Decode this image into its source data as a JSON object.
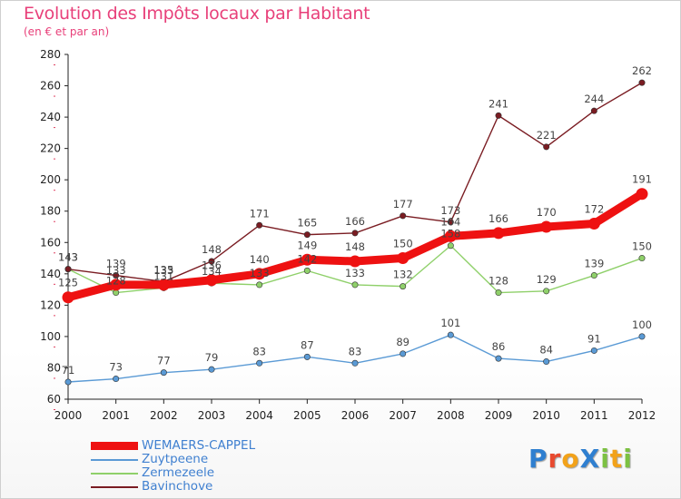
{
  "header": {
    "title": "Evolution des Impôts locaux par Habitant",
    "subtitle": "(en € et par an)"
  },
  "logo": {
    "text": "ProXiti",
    "letters": [
      {
        "ch": "P",
        "color": "#2f7fd0"
      },
      {
        "ch": "r",
        "color": "#e84a2f"
      },
      {
        "ch": "o",
        "color": "#f2a21a"
      },
      {
        "ch": "X",
        "color": "#2f7fd0"
      },
      {
        "ch": "i",
        "color": "#7cc142"
      },
      {
        "ch": "t",
        "color": "#f2a21a"
      },
      {
        "ch": "i",
        "color": "#7cc142"
      }
    ]
  },
  "chart_data": {
    "type": "line",
    "title": "Evolution des Impôts locaux par Habitant",
    "subtitle": "(en € et par an)",
    "x": [
      "2000",
      "2001",
      "2002",
      "2003",
      "2004",
      "2005",
      "2006",
      "2007",
      "2008",
      "2009",
      "2010",
      "2011",
      "2012"
    ],
    "ylim": [
      60,
      280
    ],
    "yticks": [
      60,
      80,
      100,
      120,
      140,
      160,
      180,
      200,
      220,
      240,
      260,
      280
    ],
    "grid": false,
    "legend_position": "bottom-left",
    "series": [
      {
        "name": "WEMAERS-CAPPEL",
        "color": "#ee1111",
        "values": [
          125,
          133,
          133,
          136,
          140,
          149,
          148,
          150,
          164,
          166,
          170,
          172,
          191
        ]
      },
      {
        "name": "Zuytpeene",
        "color": "#5a9ad5",
        "values": [
          71,
          73,
          77,
          79,
          83,
          87,
          83,
          89,
          101,
          86,
          84,
          91,
          100
        ]
      },
      {
        "name": "Zermezeele",
        "color": "#8fd06a",
        "values": [
          143,
          128,
          131,
          134,
          133,
          142,
          133,
          132,
          158,
          128,
          129,
          139,
          150
        ]
      },
      {
        "name": "Bavinchove",
        "color": "#7a1c22",
        "values": [
          143,
          139,
          135,
          148,
          171,
          165,
          166,
          177,
          173,
          241,
          221,
          244,
          262
        ]
      }
    ]
  }
}
